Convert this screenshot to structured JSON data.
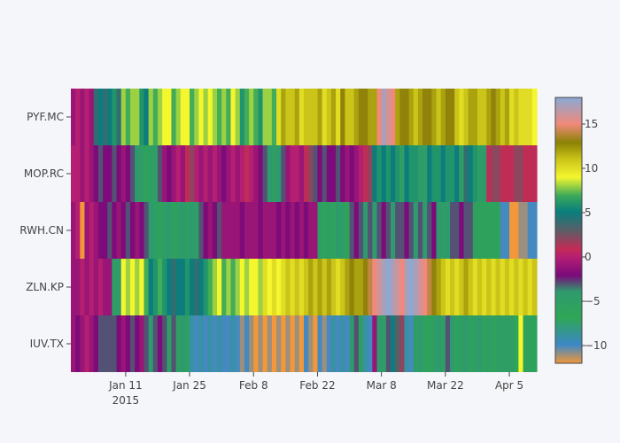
{
  "chart_data": {
    "type": "heatmap",
    "x_axis": {
      "type": "date",
      "range": [
        "2014-12-30",
        "2015-04-11"
      ],
      "ticks": [
        {
          "date": "2015-01-11",
          "label": "Jan 11",
          "sublabel": "2015"
        },
        {
          "date": "2015-01-25",
          "label": "Jan 25",
          "sublabel": ""
        },
        {
          "date": "2015-02-08",
          "label": "Feb 8",
          "sublabel": ""
        },
        {
          "date": "2015-02-22",
          "label": "Feb 22",
          "sublabel": ""
        },
        {
          "date": "2015-03-08",
          "label": "Mar 8",
          "sublabel": ""
        },
        {
          "date": "2015-03-22",
          "label": "Mar 22",
          "sublabel": ""
        },
        {
          "date": "2015-04-05",
          "label": "Apr 5",
          "sublabel": ""
        }
      ]
    },
    "y_categories": [
      "PYF.MC",
      "MOP.RC",
      "RWH.CN",
      "ZLN.KP",
      "IUV.TX"
    ],
    "colorbar": {
      "min": -12,
      "max": 18,
      "ticks": [
        15,
        10,
        5,
        0,
        -5,
        -10
      ],
      "colorscale": [
        [
          0.0,
          "#f2973a"
        ],
        [
          0.07,
          "#3c88c6"
        ],
        [
          0.17,
          "#2ea656"
        ],
        [
          0.27,
          "#2f9a6e"
        ],
        [
          0.33,
          "#7a0a7a"
        ],
        [
          0.4,
          "#b51f72"
        ],
        [
          0.43,
          "#c42a55"
        ],
        [
          0.5,
          "#595f67"
        ],
        [
          0.57,
          "#087f7d"
        ],
        [
          0.63,
          "#3aa85a"
        ],
        [
          0.7,
          "#f4f62e"
        ],
        [
          0.77,
          "#c9c218"
        ],
        [
          0.83,
          "#8b8204"
        ],
        [
          0.9,
          "#f0897b"
        ],
        [
          1.0,
          "#8aa9d4"
        ]
      ]
    },
    "rows": {
      "PYF.MC": [
        -1,
        0,
        -1,
        0,
        -1,
        4,
        5,
        4,
        5,
        6,
        4,
        8,
        7,
        8,
        8,
        6,
        5,
        8,
        7,
        8,
        9,
        9,
        7,
        8,
        9,
        9,
        7,
        8,
        9,
        8,
        9,
        8,
        7,
        8,
        7,
        9,
        8,
        6,
        7,
        8,
        7,
        6,
        8,
        8,
        7,
        10,
        12,
        11,
        11,
        12,
        10,
        11,
        11,
        11,
        12,
        10,
        11,
        12,
        10,
        13,
        11,
        11,
        12,
        13,
        13,
        12,
        12,
        15,
        17,
        16,
        15,
        12,
        13,
        13,
        12,
        11,
        12,
        13,
        13,
        12,
        11,
        12,
        13,
        13,
        11,
        10,
        11,
        12,
        12,
        11,
        11,
        12,
        13,
        12,
        11,
        12,
        10,
        11,
        10,
        10,
        10,
        9
      ],
      "MOP.RC": [
        0,
        0,
        -1,
        0,
        -1,
        -2,
        -3,
        -2,
        -2,
        -3,
        -2,
        -1,
        -2,
        -3,
        -4,
        -5,
        -6,
        -5,
        -5,
        -3,
        -1,
        -2,
        -1,
        0,
        -1,
        1,
        2,
        0,
        -1,
        0,
        -1,
        0,
        -1,
        -2,
        -1,
        0,
        -1,
        0,
        1,
        0,
        -1,
        -2,
        -3,
        -4,
        -5,
        -4,
        -3,
        -1,
        0,
        0,
        -1,
        1,
        2,
        -3,
        -2,
        -3,
        -2,
        -2,
        -3,
        -2,
        -1,
        -2,
        -1,
        0,
        1,
        2,
        5,
        6,
        5,
        6,
        5,
        6,
        -5,
        5,
        6,
        6,
        -4,
        -5,
        5,
        6,
        6,
        5,
        6,
        6,
        5,
        -5,
        4,
        5,
        6,
        -5,
        -4,
        1,
        2,
        2,
        1,
        1,
        1,
        2,
        2,
        1,
        1,
        1
      ],
      "RWH.CN": [
        -1,
        0,
        -12,
        -1,
        0,
        -1,
        -2,
        -2,
        -3,
        -2,
        -1,
        -2,
        -3,
        -2,
        -1,
        -2,
        -3,
        -4,
        -5,
        -6,
        -5,
        -4,
        -6,
        -5,
        -4,
        -5,
        -4,
        -5,
        -3,
        -2,
        -1,
        -2,
        -3,
        -1,
        -1,
        -1,
        -1,
        -2,
        -1,
        -1,
        -1,
        -2,
        -1,
        -1,
        -1,
        -2,
        -1,
        -2,
        -1,
        -2,
        -1,
        -2,
        -1,
        -1,
        -5,
        -6,
        -5,
        -6,
        -4,
        -5,
        -6,
        -3,
        -2,
        -3,
        -4,
        -3,
        -4,
        -3,
        -2,
        -3,
        -4,
        -3,
        -3,
        -2,
        -3,
        -4,
        -3,
        -4,
        -3,
        -2,
        -4,
        -5,
        -4,
        -3,
        -3,
        -2,
        -3,
        -3,
        -6,
        -6,
        -6,
        -6,
        -6,
        -6,
        -10,
        -10,
        -12,
        -12,
        -11,
        -11,
        -10,
        -10
      ],
      "ZLN.KP": [
        -1,
        -1,
        0,
        -1,
        0,
        -1,
        0,
        -1,
        -1,
        -5,
        -4,
        9,
        8,
        9,
        8,
        9,
        7,
        5,
        6,
        7,
        6,
        5,
        4,
        5,
        5,
        6,
        5,
        4,
        5,
        6,
        7,
        8,
        9,
        7,
        8,
        7,
        8,
        9,
        8,
        9,
        9,
        8,
        10,
        9,
        10,
        9,
        10,
        11,
        10,
        11,
        10,
        11,
        12,
        11,
        12,
        11,
        12,
        11,
        10,
        11,
        12,
        13,
        12,
        12,
        13,
        14,
        15,
        16,
        17,
        18,
        17,
        16,
        15,
        17,
        18,
        17,
        16,
        15,
        14,
        13,
        12,
        11,
        10,
        11,
        10,
        11,
        12,
        11,
        10,
        11,
        10,
        11,
        10,
        11,
        10,
        11,
        10,
        11,
        10,
        11,
        10,
        11
      ],
      "IUV.TX": [
        -1,
        -2,
        -1,
        0,
        -1,
        -2,
        -3,
        -3,
        -3,
        -3,
        -2,
        -1,
        -2,
        -3,
        -2,
        -1,
        -3,
        -4,
        -3,
        -2,
        -3,
        -5,
        -3,
        -5,
        -4,
        -5,
        -9,
        -10,
        -9,
        -10,
        -9,
        -10,
        -9,
        -10,
        -10,
        -9,
        -10,
        -11,
        -10,
        -11,
        -12,
        -11,
        -12,
        -11,
        -12,
        -11,
        -12,
        -11,
        -12,
        -11,
        -12,
        -10,
        -11,
        -12,
        -10,
        -11,
        -10,
        -9,
        -10,
        -9,
        -10,
        -4,
        -3,
        -5,
        -9,
        -10,
        -1,
        -4,
        -5,
        -3,
        5,
        3,
        2,
        -9,
        -10,
        -5,
        -4,
        -6,
        -6,
        -5,
        -4,
        -5,
        -3,
        -4,
        -6,
        -5,
        -4,
        -6,
        -5,
        -4,
        -6,
        -5,
        -6,
        -5,
        -5,
        -5,
        -5,
        -7,
        9,
        -6,
        -6,
        -6
      ]
    }
  }
}
